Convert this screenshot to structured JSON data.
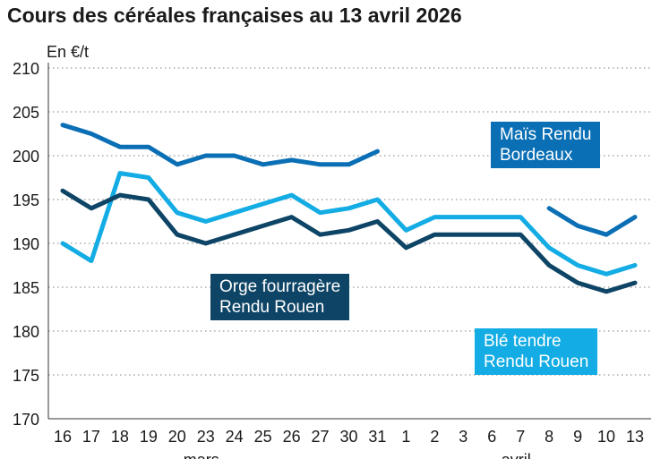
{
  "chart_data": {
    "type": "line",
    "title": "Cours des céréales françaises au 13 avril 2026",
    "ylabel": "En €/t",
    "ylim": [
      170,
      210
    ],
    "yticks": [
      170,
      175,
      180,
      185,
      190,
      195,
      200,
      205,
      210
    ],
    "grid": true,
    "categories": [
      "16",
      "17",
      "18",
      "19",
      "20",
      "23",
      "24",
      "25",
      "26",
      "27",
      "30",
      "31",
      "1",
      "2",
      "3",
      "6",
      "7",
      "8",
      "9",
      "10",
      "13"
    ],
    "month_labels": [
      {
        "label": "mars",
        "at": "23"
      },
      {
        "label": "avril",
        "at": "7"
      }
    ],
    "series": [
      {
        "name": "Maïs Rendu Bordeaux",
        "color": "#0a6fb4",
        "values": [
          203.5,
          202.5,
          201,
          201,
          199,
          200,
          200,
          199,
          199.5,
          199,
          199,
          200.5,
          null,
          null,
          null,
          null,
          null,
          194,
          192,
          191,
          193
        ]
      },
      {
        "name": "Blé tendre Rendu Rouen",
        "color": "#13ace4",
        "values": [
          190,
          188,
          198,
          197.5,
          193.5,
          192.5,
          193.5,
          194.5,
          195.5,
          193.5,
          194,
          195,
          191.5,
          193,
          193,
          193,
          193,
          189.5,
          187.5,
          186.5,
          187.5
        ]
      },
      {
        "name": "Orge fourragère Rendu Rouen",
        "color": "#0e4566",
        "values": [
          196,
          194,
          195.5,
          195,
          191,
          190,
          191,
          192,
          193,
          191,
          191.5,
          192.5,
          189.5,
          191,
          191,
          191,
          191,
          187.5,
          185.5,
          184.5,
          185.5
        ]
      }
    ],
    "labels": [
      {
        "series": 0,
        "line1": "Maïs Rendu",
        "line2": "Bordeaux"
      },
      {
        "series": 2,
        "line1": "Orge fourragère",
        "line2": "Rendu Rouen"
      },
      {
        "series": 1,
        "line1": "Blé tendre",
        "line2": "Rendu Rouen"
      }
    ]
  }
}
